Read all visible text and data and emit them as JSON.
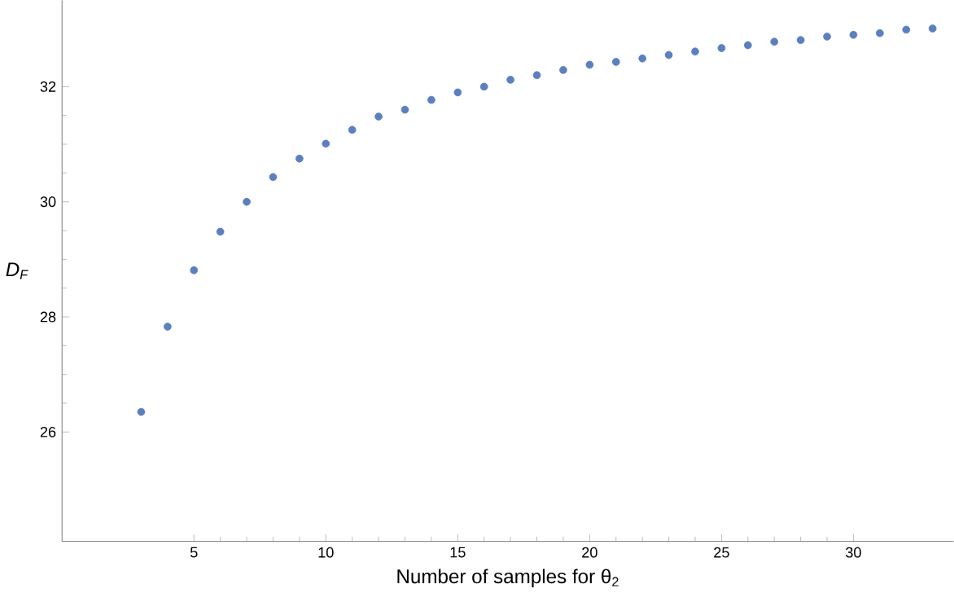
{
  "chart_data": {
    "type": "scatter",
    "xlabel": "Number of samples for θ$_{2}$",
    "ylabel": "D$_{F}$",
    "x": [
      3,
      4,
      5,
      6,
      7,
      8,
      9,
      10,
      11,
      12,
      13,
      14,
      15,
      16,
      17,
      18,
      19,
      20,
      21,
      22,
      23,
      24,
      25,
      26,
      27,
      28,
      29,
      30,
      31,
      32,
      33
    ],
    "values": [
      26.35,
      27.83,
      28.81,
      29.48,
      30.0,
      30.43,
      30.75,
      31.01,
      31.25,
      31.48,
      31.6,
      31.77,
      31.9,
      32.0,
      32.12,
      32.2,
      32.29,
      32.38,
      32.43,
      32.49,
      32.55,
      32.61,
      32.67,
      32.72,
      32.78,
      32.81,
      32.87,
      32.9,
      32.93,
      32.99,
      33.01
    ],
    "color": "#5b7fbf",
    "marker": "circle",
    "xlim": [
      0,
      33.8
    ],
    "ylim": [
      24.1,
      33.5
    ],
    "xticks": [
      5,
      10,
      15,
      20,
      25,
      30
    ],
    "yticks": [
      26,
      28,
      30,
      32
    ]
  }
}
